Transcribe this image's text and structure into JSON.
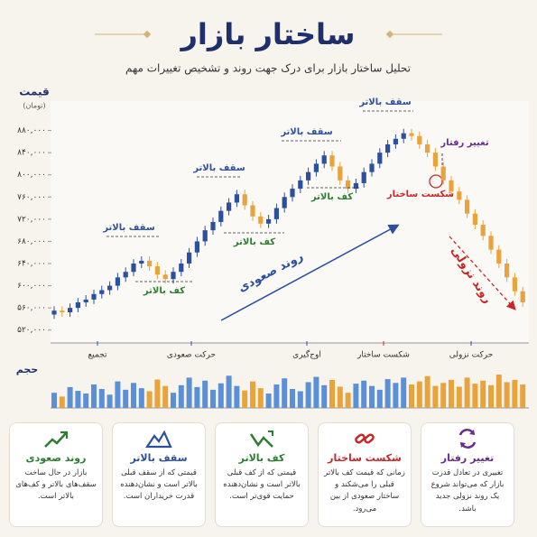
{
  "header": {
    "title": "ساختار بازار",
    "subtitle": "تحلیل ساختار بازار برای درک جهت روند و تشخیص تغییرات مهم"
  },
  "chart_data": [
    {
      "type": "candlestick",
      "y_label": "قیمت",
      "y_unit": "(تومان)",
      "up_color": "#2c4f9e",
      "down_color": "#e8a33d",
      "open": [
        548000,
        555000,
        552000,
        560000,
        570000,
        575000,
        585000,
        592000,
        600000,
        615000,
        625000,
        640000,
        645000,
        635000,
        620000,
        612000,
        625000,
        640000,
        660000,
        680000,
        700000,
        715000,
        735000,
        750000,
        765000,
        745000,
        725000,
        712000,
        720000,
        740000,
        760000,
        775000,
        790000,
        805000,
        820000,
        835000,
        815000,
        790000,
        775000,
        785000,
        805000,
        820000,
        840000,
        855000,
        865000,
        875000,
        870000,
        855000,
        840000,
        815000,
        790000,
        770000,
        755000,
        730000,
        710000,
        690000,
        665000,
        640000,
        615000,
        590000
      ],
      "high": [
        563000,
        563000,
        568000,
        578000,
        583000,
        593000,
        600000,
        608000,
        623000,
        633000,
        648000,
        653000,
        653000,
        643000,
        628000,
        633000,
        648000,
        668000,
        688000,
        708000,
        723000,
        743000,
        758000,
        773000,
        773000,
        753000,
        733000,
        728000,
        748000,
        768000,
        783000,
        798000,
        813000,
        828000,
        843000,
        843000,
        823000,
        798000,
        793000,
        813000,
        828000,
        848000,
        863000,
        873000,
        883000,
        883000,
        878000,
        863000,
        848000,
        823000,
        798000,
        778000,
        763000,
        738000,
        718000,
        698000,
        673000,
        648000,
        623000,
        598000
      ],
      "low": [
        540000,
        544000,
        544000,
        552000,
        562000,
        567000,
        577000,
        584000,
        592000,
        607000,
        617000,
        632000,
        627000,
        612000,
        604000,
        604000,
        617000,
        632000,
        652000,
        672000,
        692000,
        707000,
        727000,
        742000,
        737000,
        717000,
        704000,
        704000,
        712000,
        732000,
        752000,
        767000,
        782000,
        797000,
        812000,
        807000,
        782000,
        767000,
        767000,
        777000,
        797000,
        812000,
        832000,
        847000,
        857000,
        862000,
        847000,
        832000,
        807000,
        782000,
        762000,
        747000,
        722000,
        702000,
        682000,
        657000,
        632000,
        607000,
        582000,
        562000
      ],
      "close": [
        555000,
        552000,
        560000,
        570000,
        575000,
        585000,
        592000,
        600000,
        615000,
        625000,
        640000,
        645000,
        635000,
        620000,
        612000,
        625000,
        640000,
        660000,
        680000,
        700000,
        715000,
        735000,
        750000,
        765000,
        745000,
        725000,
        712000,
        720000,
        740000,
        760000,
        775000,
        790000,
        805000,
        820000,
        835000,
        815000,
        790000,
        775000,
        785000,
        805000,
        820000,
        840000,
        855000,
        865000,
        875000,
        870000,
        855000,
        840000,
        815000,
        790000,
        770000,
        755000,
        730000,
        710000,
        690000,
        665000,
        640000,
        615000,
        590000,
        570000
      ],
      "ylim": [
        500000,
        920000
      ],
      "yticks": [
        {
          "value": 520000,
          "label": "۵۲۰,۰۰۰"
        },
        {
          "value": 560000,
          "label": "۵۶۰,۰۰۰"
        },
        {
          "value": 600000,
          "label": "۶۰۰,۰۰۰"
        },
        {
          "value": 640000,
          "label": "۶۴۰,۰۰۰"
        },
        {
          "value": 680000,
          "label": "۶۸۰,۰۰۰"
        },
        {
          "value": 720000,
          "label": "۷۲۰,۰۰۰"
        },
        {
          "value": 760000,
          "label": "۷۶۰,۰۰۰"
        },
        {
          "value": 800000,
          "label": "۸۰۰,۰۰۰"
        },
        {
          "value": 840000,
          "label": "۸۴۰,۰۰۰"
        },
        {
          "value": 880000,
          "label": "۸۸۰,۰۰۰"
        }
      ],
      "x_labels": [
        "تجمیع",
        "حرکت صعودی",
        "اوج‌گیری",
        "شکست ساختار",
        "حرکت نزولی"
      ],
      "annotations": [
        "سقف بالاتر",
        "سقف بالاتر",
        "سقف بالاتر",
        "سقف بالاتر",
        "کف بالاتر",
        "کف بالاتر",
        "کف بالاتر",
        "روند صعودی",
        "روند نزولی",
        "تغییر رفتار",
        "شکست ساختار"
      ]
    },
    {
      "type": "bar",
      "y_label": "حجم",
      "ylim": [
        0,
        100
      ],
      "values": [
        40,
        30,
        55,
        45,
        38,
        62,
        50,
        35,
        70,
        48,
        66,
        52,
        44,
        75,
        58,
        40,
        60,
        80,
        55,
        72,
        48,
        65,
        85,
        58,
        46,
        70,
        52,
        38,
        62,
        78,
        50,
        44,
        68,
        82,
        60,
        74,
        56,
        40,
        64,
        72,
        58,
        48,
        76,
        66,
        80,
        62,
        70,
        84,
        58,
        66,
        74,
        56,
        80,
        64,
        72,
        60,
        88,
        68,
        74,
        62
      ]
    }
  ],
  "cards": [
    {
      "title": "تغییر رفتار",
      "text": "تغییری در تعادل قدرت بازار که می‌تواند شروع یک روند نزولی جدید باشد."
    },
    {
      "title": "شکست ساختار",
      "text": "زمانی که قیمت کف بالاتر قبلی را می‌شکند و ساختار صعودی از بین می‌رود."
    },
    {
      "title": "کف بالاتر",
      "text": "قیمتی که از کف قبلی بالاتر است و نشان‌دهنده حمایت قوی‌تر است."
    },
    {
      "title": "سقف بالاتر",
      "text": "قیمتی که از سقف قبلی بالاتر است و نشان‌دهنده قدرت خریداران است."
    },
    {
      "title": "روند صعودی",
      "text": "بازار در حال ساخت سقف‌های بالاتر و کف‌های بالاتر است."
    }
  ]
}
